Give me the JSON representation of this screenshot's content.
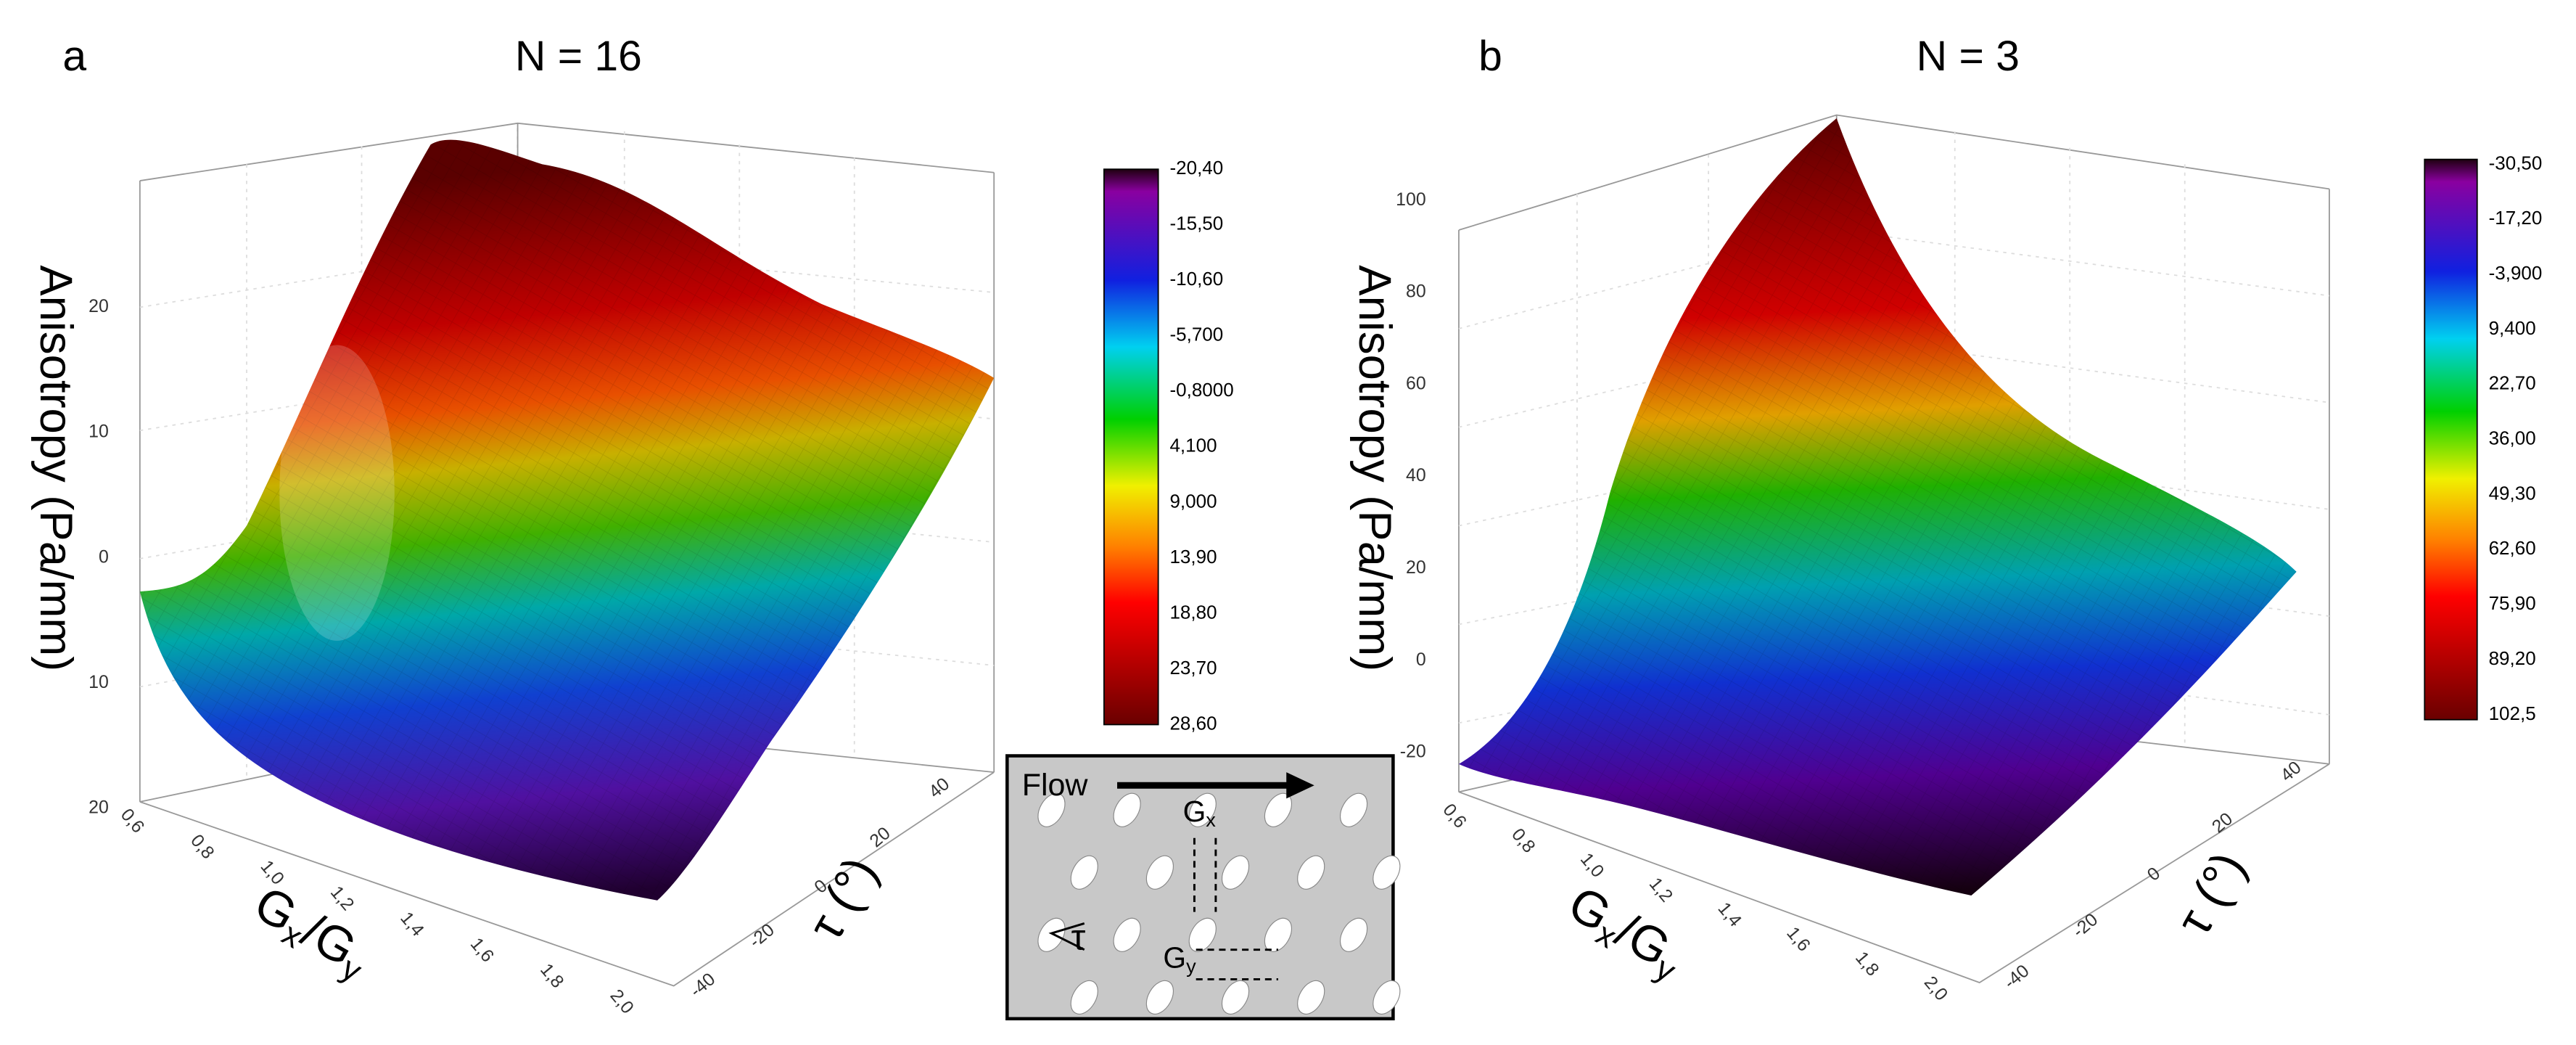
{
  "panels": [
    {
      "label": "a",
      "title": "N = 16",
      "z_label": "Anisotropy (Pa/mm)",
      "x_label": [
        "G",
        "x",
        "/G",
        "y"
      ],
      "t_label": "τ (°)",
      "z_ticks": [
        "20",
        "10",
        "0",
        "10",
        "20"
      ],
      "x_ticks": [
        "0,6",
        "0,8",
        "1,0",
        "1,2",
        "1,4",
        "1,6",
        "1,8",
        "2,0"
      ],
      "t_ticks": [
        "-40",
        "-20",
        "0",
        "20",
        "40"
      ],
      "colorbar": [
        "-20,40",
        "-15,50",
        "-10,60",
        "-5,700",
        "-0,8000",
        "4,100",
        "9,000",
        "13,90",
        "18,80",
        "23,70",
        "28,60"
      ]
    },
    {
      "label": "b",
      "title": "N = 3",
      "z_label": "Anisotropy (Pa/mm)",
      "x_label": [
        "G",
        "x",
        "/G",
        "y"
      ],
      "t_label": "τ (°)",
      "z_ticks": [
        "100",
        "80",
        "60",
        "40",
        "20",
        "0",
        "-20"
      ],
      "x_ticks": [
        "0,6",
        "0,8",
        "1,0",
        "1,2",
        "1,4",
        "1,6",
        "1,8",
        "2,0"
      ],
      "t_ticks": [
        "-40",
        "-20",
        "0",
        "20",
        "40"
      ],
      "colorbar": [
        "-30,50",
        "-17,20",
        "-3,900",
        "9,400",
        "22,70",
        "36,00",
        "49,30",
        "62,60",
        "75,90",
        "89,20",
        "102,5"
      ]
    }
  ],
  "inset": {
    "flow": "Flow",
    "gx": [
      "G",
      "x"
    ],
    "gy": [
      "G",
      "y"
    ],
    "tau": "τ"
  }
}
